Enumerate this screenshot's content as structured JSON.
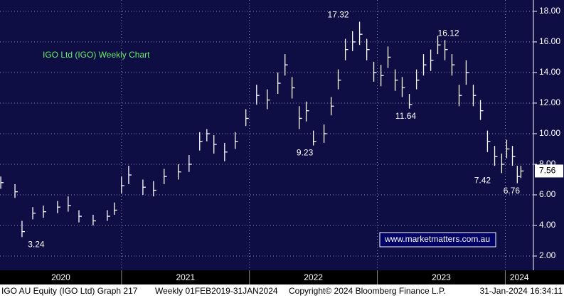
{
  "chart_data": {
    "type": "hlc",
    "title": "IGO Ltd (IGO) Weekly Chart",
    "watermark": "www.marketmatters.com.au",
    "footer": [
      "IGO AU Equity (IGO Ltd) Graph 217",
      "Weekly 01FEB2019-31JAN2024",
      "Copyright© 2024 Bloomberg Finance L.P.",
      "31-Jan-2024 16:34:11"
    ],
    "color": "#ffffff",
    "background": "#0e0e44",
    "grid": true,
    "x": [
      2020.056,
      2020.167,
      2020.222,
      2020.306,
      2020.389,
      2020.5,
      2020.583,
      2020.667,
      2020.778,
      2020.889,
      2020.944,
      2021.0,
      2021.056,
      2021.167,
      2021.25,
      2021.333,
      2021.444,
      2021.528,
      2021.611,
      2021.667,
      2021.722,
      2021.806,
      2021.889,
      2021.972,
      2022.056,
      2022.139,
      2022.222,
      2022.278,
      2022.333,
      2022.389,
      2022.444,
      2022.5,
      2022.583,
      2022.639,
      2022.694,
      2022.75,
      2022.806,
      2022.861,
      2022.917,
      2022.972,
      2023.028,
      2023.083,
      2023.139,
      2023.194,
      2023.25,
      2023.306,
      2023.361,
      2023.417,
      2023.472,
      2023.528,
      2023.583,
      2023.639,
      2023.694,
      2023.75,
      2023.806,
      2023.861,
      2023.917,
      2023.972,
      2024.011,
      2024.056,
      2024.094,
      2024.122
    ],
    "high": [
      7.2,
      6.7,
      4.3,
      5.2,
      5.3,
      5.6,
      5.9,
      5.0,
      4.7,
      5.0,
      5.5,
      7.2,
      7.9,
      7.0,
      6.9,
      7.7,
      8.0,
      8.6,
      10.1,
      10.3,
      9.9,
      9.4,
      10.1,
      11.6,
      13.2,
      12.9,
      14.0,
      15.2,
      13.7,
      11.8,
      12.1,
      10.2,
      10.6,
      12.4,
      14.2,
      16.2,
      16.7,
      17.32,
      16.2,
      14.7,
      14.5,
      15.7,
      14.2,
      13.7,
      12.6,
      14.2,
      15.2,
      15.5,
      16.4,
      16.12,
      15.2,
      13.2,
      14.8,
      13.2,
      12.2,
      10.2,
      9.2,
      8.7,
      9.6,
      9.2,
      7.9,
      7.9
    ],
    "low": [
      6.4,
      5.8,
      3.24,
      4.4,
      4.5,
      4.8,
      4.9,
      4.2,
      4.0,
      4.3,
      4.7,
      6.1,
      6.7,
      6.0,
      5.9,
      6.7,
      7.0,
      7.5,
      8.9,
      9.5,
      8.7,
      8.2,
      9.0,
      10.5,
      11.9,
      11.6,
      12.6,
      13.8,
      12.3,
      10.3,
      10.8,
      9.23,
      9.4,
      11.2,
      12.9,
      14.8,
      15.4,
      15.8,
      14.8,
      13.4,
      13.1,
      14.3,
      12.8,
      12.4,
      11.64,
      12.9,
      13.8,
      14.1,
      15.2,
      14.8,
      13.8,
      11.8,
      13.2,
      11.8,
      10.9,
      8.8,
      7.9,
      7.42,
      8.4,
      7.9,
      6.76,
      7.1
    ],
    "close": [
      6.8,
      6.2,
      3.6,
      4.8,
      4.9,
      5.2,
      5.3,
      4.6,
      4.3,
      4.6,
      5.0,
      6.6,
      7.3,
      6.5,
      6.3,
      7.2,
      7.5,
      8.0,
      9.5,
      10.0,
      9.3,
      8.8,
      9.5,
      11.0,
      12.5,
      12.2,
      13.3,
      14.5,
      13.0,
      11.0,
      11.5,
      9.5,
      10.0,
      11.8,
      13.5,
      15.5,
      16.0,
      16.5,
      15.5,
      14.0,
      13.8,
      15.0,
      13.5,
      13.0,
      11.9,
      13.5,
      14.5,
      14.8,
      15.8,
      15.5,
      14.5,
      12.5,
      14.0,
      12.5,
      11.5,
      9.5,
      8.5,
      8.0,
      9.0,
      8.5,
      7.2,
      7.56
    ],
    "annotations": [
      {
        "value": 17.32,
        "x": 2022.694,
        "position": "above"
      },
      {
        "value": 16.12,
        "x": 2023.556,
        "position": "above"
      },
      {
        "value": 11.64,
        "x": 2023.222,
        "position": "below"
      },
      {
        "value": 9.23,
        "x": 2022.433,
        "position": "below"
      },
      {
        "value": 7.42,
        "x": 2023.822,
        "position": "below"
      },
      {
        "value": 6.76,
        "x": 2024.05,
        "position": "below"
      },
      {
        "value": 3.24,
        "x": 2020.333,
        "position": "below"
      }
    ],
    "last_value": 7.56,
    "xlim": [
      2020.05,
      2024.22
    ],
    "xticks": [
      2020,
      2021,
      2022,
      2023,
      2024
    ],
    "ylim": [
      1.07,
      18.74
    ],
    "yticks": [
      {
        "value": 2,
        "label": "2.00"
      },
      {
        "value": 4,
        "label": "4.00"
      },
      {
        "value": 6,
        "label": "6.00"
      },
      {
        "value": 8,
        "label": "8.00"
      },
      {
        "value": 10,
        "label": "10.00"
      },
      {
        "value": 12,
        "label": "12.00"
      },
      {
        "value": 14,
        "label": "14.00"
      },
      {
        "value": 16,
        "label": "16.00"
      },
      {
        "value": 18,
        "label": "18.00"
      }
    ]
  }
}
